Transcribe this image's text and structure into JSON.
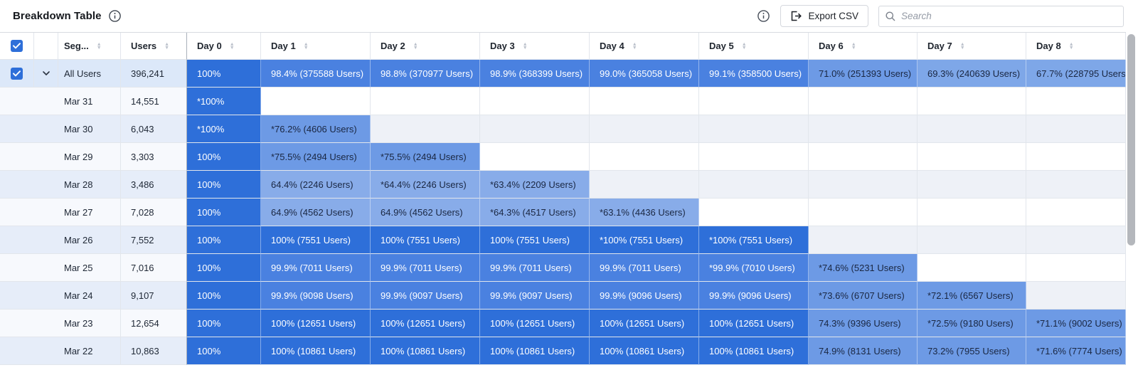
{
  "toolbar": {
    "title": "Breakdown Table",
    "export_label": "Export CSV",
    "search_placeholder": "Search"
  },
  "columns": {
    "segment": "Seg...",
    "users": "Users",
    "days": [
      "Day 0",
      "Day 1",
      "Day 2",
      "Day 3",
      "Day 4",
      "Day 5",
      "Day 6",
      "Day 7",
      "Day 8"
    ]
  },
  "colors": {
    "accent": "#2e6fd9",
    "cell_100": "#2e6fd9",
    "cell_98": "#4a81e0",
    "cell_71": "#6d9ae5",
    "cell_66": "#7ea7e8",
    "cell_low": "#88ace9",
    "text_on_dark": "#ffffff",
    "text_on_light": "#1a2742"
  },
  "rows": [
    {
      "segment": "All Users",
      "users": "396,241",
      "selected": true,
      "expanded": true,
      "cells": [
        {
          "text": "100%",
          "pct": 100
        },
        {
          "text": "98.4% (375588 Users)",
          "pct": 98.4
        },
        {
          "text": "98.8% (370977 Users)",
          "pct": 98.8
        },
        {
          "text": "98.9% (368399 Users)",
          "pct": 98.9
        },
        {
          "text": "99.0% (365058 Users)",
          "pct": 99.0
        },
        {
          "text": "99.1% (358500 Users)",
          "pct": 99.1
        },
        {
          "text": "71.0% (251393 Users)",
          "pct": 71.0
        },
        {
          "text": "69.3% (240639 Users)",
          "pct": 69.3
        },
        {
          "text": "67.7% (228795 Users)",
          "pct": 67.7
        }
      ]
    },
    {
      "segment": "Mar 31",
      "users": "14,551",
      "cells": [
        {
          "text": "*100%",
          "pct": 100
        },
        null,
        null,
        null,
        null,
        null,
        null,
        null,
        null
      ]
    },
    {
      "segment": "Mar 30",
      "users": "6,043",
      "cells": [
        {
          "text": "*100%",
          "pct": 100
        },
        {
          "text": "*76.2% (4606 Users)",
          "pct": 76.2
        },
        null,
        null,
        null,
        null,
        null,
        null,
        null
      ]
    },
    {
      "segment": "Mar 29",
      "users": "3,303",
      "cells": [
        {
          "text": "100%",
          "pct": 100
        },
        {
          "text": "*75.5% (2494 Users)",
          "pct": 75.5
        },
        {
          "text": "*75.5% (2494 Users)",
          "pct": 75.5
        },
        null,
        null,
        null,
        null,
        null,
        null
      ]
    },
    {
      "segment": "Mar 28",
      "users": "3,486",
      "cells": [
        {
          "text": "100%",
          "pct": 100
        },
        {
          "text": "64.4% (2246 Users)",
          "pct": 64.4
        },
        {
          "text": "*64.4% (2246 Users)",
          "pct": 64.4
        },
        {
          "text": "*63.4% (2209 Users)",
          "pct": 63.4
        },
        null,
        null,
        null,
        null,
        null
      ]
    },
    {
      "segment": "Mar 27",
      "users": "7,028",
      "cells": [
        {
          "text": "100%",
          "pct": 100
        },
        {
          "text": "64.9% (4562 Users)",
          "pct": 64.9
        },
        {
          "text": "64.9% (4562 Users)",
          "pct": 64.9
        },
        {
          "text": "*64.3% (4517 Users)",
          "pct": 64.3
        },
        {
          "text": "*63.1% (4436 Users)",
          "pct": 63.1
        },
        null,
        null,
        null,
        null
      ]
    },
    {
      "segment": "Mar 26",
      "users": "7,552",
      "cells": [
        {
          "text": "100%",
          "pct": 100
        },
        {
          "text": "100% (7551 Users)",
          "pct": 100
        },
        {
          "text": "100% (7551 Users)",
          "pct": 100
        },
        {
          "text": "100% (7551 Users)",
          "pct": 100
        },
        {
          "text": "*100% (7551 Users)",
          "pct": 100
        },
        {
          "text": "*100% (7551 Users)",
          "pct": 100
        },
        null,
        null,
        null
      ]
    },
    {
      "segment": "Mar 25",
      "users": "7,016",
      "cells": [
        {
          "text": "100%",
          "pct": 100
        },
        {
          "text": "99.9% (7011 Users)",
          "pct": 99.9
        },
        {
          "text": "99.9% (7011 Users)",
          "pct": 99.9
        },
        {
          "text": "99.9% (7011 Users)",
          "pct": 99.9
        },
        {
          "text": "99.9% (7011 Users)",
          "pct": 99.9
        },
        {
          "text": "*99.9% (7010 Users)",
          "pct": 99.9
        },
        {
          "text": "*74.6% (5231 Users)",
          "pct": 74.6
        },
        null,
        null
      ]
    },
    {
      "segment": "Mar 24",
      "users": "9,107",
      "cells": [
        {
          "text": "100%",
          "pct": 100
        },
        {
          "text": "99.9% (9098 Users)",
          "pct": 99.9
        },
        {
          "text": "99.9% (9097 Users)",
          "pct": 99.9
        },
        {
          "text": "99.9% (9097 Users)",
          "pct": 99.9
        },
        {
          "text": "99.9% (9096 Users)",
          "pct": 99.9
        },
        {
          "text": "99.9% (9096 Users)",
          "pct": 99.9
        },
        {
          "text": "*73.6% (6707 Users)",
          "pct": 73.6
        },
        {
          "text": "*72.1% (6567 Users)",
          "pct": 72.1
        },
        null
      ]
    },
    {
      "segment": "Mar 23",
      "users": "12,654",
      "cells": [
        {
          "text": "100%",
          "pct": 100
        },
        {
          "text": "100% (12651 Users)",
          "pct": 100
        },
        {
          "text": "100% (12651 Users)",
          "pct": 100
        },
        {
          "text": "100% (12651 Users)",
          "pct": 100
        },
        {
          "text": "100% (12651 Users)",
          "pct": 100
        },
        {
          "text": "100% (12651 Users)",
          "pct": 100
        },
        {
          "text": "74.3% (9396 Users)",
          "pct": 74.3
        },
        {
          "text": "*72.5% (9180 Users)",
          "pct": 72.5
        },
        {
          "text": "*71.1% (9002 Users)",
          "pct": 71.1
        }
      ]
    },
    {
      "segment": "Mar 22",
      "users": "10,863",
      "cells": [
        {
          "text": "100%",
          "pct": 100
        },
        {
          "text": "100% (10861 Users)",
          "pct": 100
        },
        {
          "text": "100% (10861 Users)",
          "pct": 100
        },
        {
          "text": "100% (10861 Users)",
          "pct": 100
        },
        {
          "text": "100% (10861 Users)",
          "pct": 100
        },
        {
          "text": "100% (10861 Users)",
          "pct": 100
        },
        {
          "text": "74.9% (8131 Users)",
          "pct": 74.9
        },
        {
          "text": "73.2% (7955 Users)",
          "pct": 73.2
        },
        {
          "text": "*71.6% (7774 Users)",
          "pct": 71.6
        }
      ]
    }
  ]
}
